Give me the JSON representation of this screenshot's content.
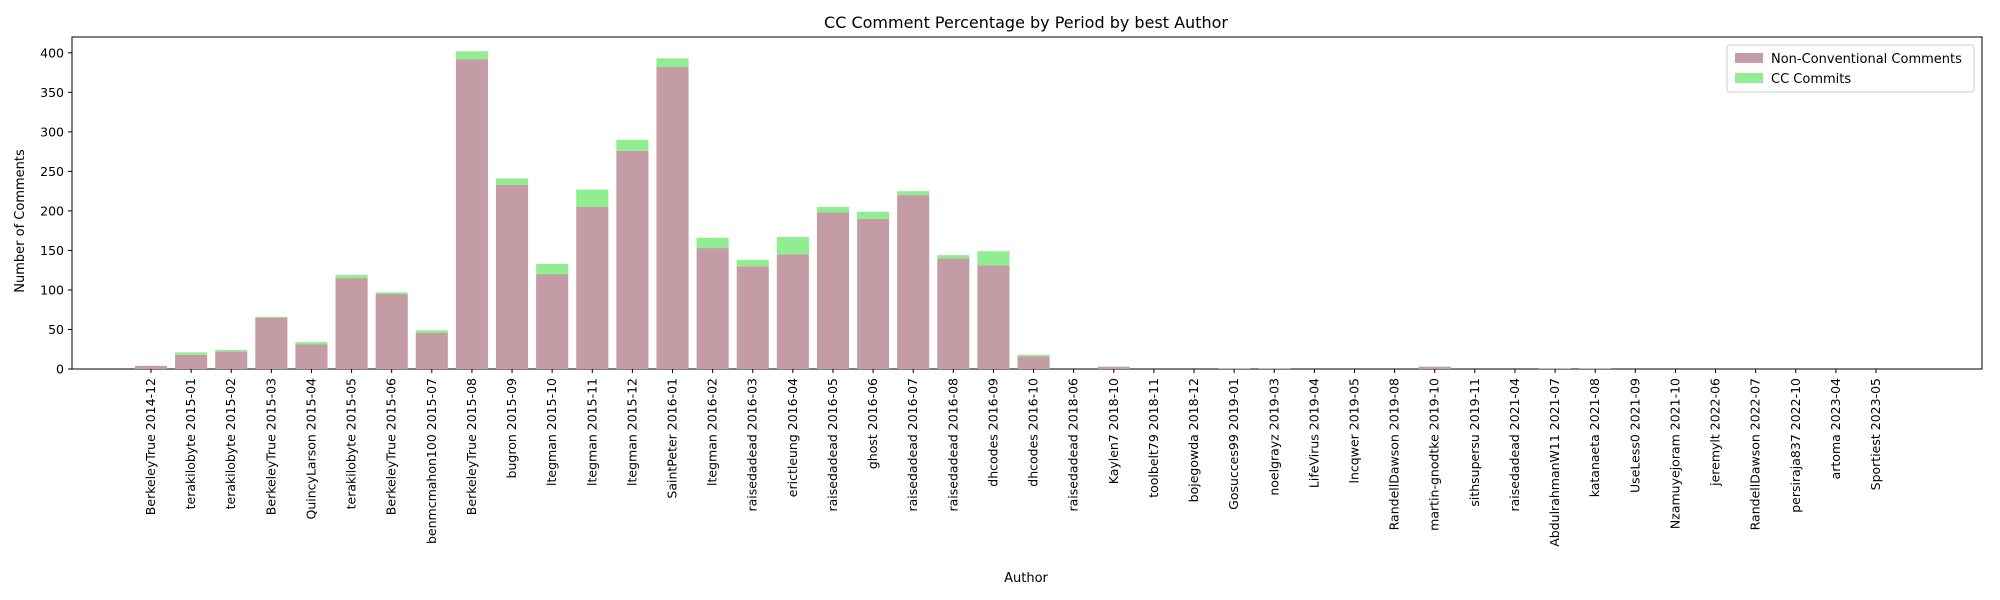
{
  "chart_data": {
    "type": "bar",
    "title": "CC Comment Percentage by Period by best Author",
    "xlabel": "Author",
    "ylabel": "Number of Comments",
    "ylim": [
      0,
      420
    ],
    "yticks": [
      0,
      50,
      100,
      150,
      200,
      250,
      300,
      350,
      400
    ],
    "stacked": true,
    "grid": false,
    "legend_position": "top-right",
    "categories": [
      "BerkeleyTrue 2014-12",
      "terakilobyte 2015-01",
      "terakilobyte 2015-02",
      "BerkeleyTrue 2015-03",
      "QuincyLarson 2015-04",
      "terakilobyte 2015-05",
      "BerkeleyTrue 2015-06",
      "benmcmahon100 2015-07",
      "BerkeleyTrue 2015-08",
      "bugron 2015-09",
      "ltegman 2015-10",
      "ltegman 2015-11",
      "ltegman 2015-12",
      "SaintPeter 2016-01",
      "ltegman 2016-02",
      "raisedadead 2016-03",
      "erictleung 2016-04",
      "raisedadead 2016-05",
      "ghost 2016-06",
      "raisedadead 2016-07",
      "raisedadead 2016-08",
      "dhcodes 2016-09",
      "dhcodes 2016-10",
      "raisedadead 2018-06",
      "Kaylen7 2018-10",
      "toolbelt79 2018-11",
      "bojegowda 2018-12",
      "Gosucces99 2019-01",
      "noelgrayz 2019-03",
      "LifeVirus 2019-04",
      "lncqwer 2019-05",
      "RandellDawson 2019-08",
      "martin-gnodtke 2019-10",
      "sithsupersu 2019-11",
      "raisedadead 2021-04",
      "AbdulrahmanW11 2021-07",
      "katanaeta 2021-08",
      "UseLess0 2021-09",
      "Nzamuyejoram 2021-10",
      "jeremylt 2022-06",
      "RandellDawson 2022-07",
      "persiraja837 2022-10",
      "artoma 2023-04",
      "Sportiest 2023-05"
    ],
    "series": [
      {
        "name": "Non-Conventional Comments",
        "color": "#c49ca6",
        "values": [
          4,
          18,
          22,
          65,
          31,
          115,
          95,
          46,
          392,
          233,
          120,
          205,
          276,
          382,
          153,
          130,
          145,
          198,
          190,
          220,
          140,
          131,
          16,
          0,
          3,
          0,
          0,
          1,
          1,
          0,
          0,
          0,
          3,
          0,
          0,
          1,
          1,
          0,
          0,
          0,
          0,
          0,
          0,
          0
        ]
      },
      {
        "name": "CC Commits",
        "color": "#90ee90",
        "values": [
          0,
          3,
          2,
          1,
          3,
          4,
          2,
          3,
          10,
          8,
          13,
          22,
          14,
          11,
          13,
          8,
          22,
          7,
          9,
          5,
          4,
          18,
          2,
          0,
          0,
          0,
          0,
          0,
          0,
          0,
          0,
          0,
          0,
          0,
          0,
          0,
          0,
          0,
          0,
          0,
          0,
          0,
          0,
          0
        ]
      }
    ]
  }
}
